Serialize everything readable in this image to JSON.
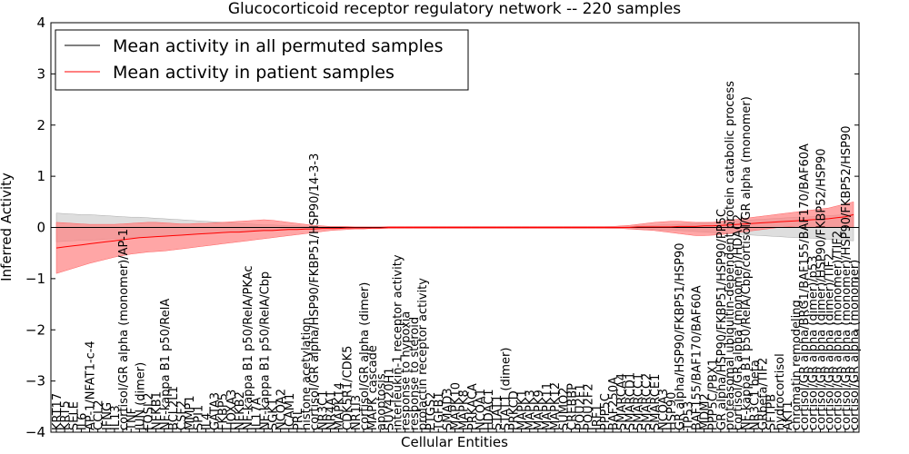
{
  "chart_data": {
    "type": "line",
    "title": "Glucocorticoid receptor regulatory network -- 220 samples",
    "xlabel": "Cellular Entities",
    "ylabel": "Inferred Activity",
    "ylim": [
      -4,
      4
    ],
    "yticks": [
      -4,
      -3,
      -2,
      -1,
      0,
      1,
      2,
      3,
      4
    ],
    "legend_position": "top-left",
    "colors": {
      "permuted": "#000000",
      "patient": "#ff0000",
      "permuted_band": "#c8c8c8",
      "patient_band": "#ff8080"
    },
    "categories": [
      "KRT17",
      "KRT5",
      "SELE",
      "IL6",
      "AP-1/NFAT1-c-4",
      "CCL2",
      "IFNG",
      "IL13",
      "cortisol/GR alpha (monomer)/AP-1",
      "TNF",
      "JUN (dimer)",
      "FOSL2",
      "NFKB1",
      "NF-kappa B1 p50/RelA",
      "BCL2L1",
      "CSF2",
      "MMP1",
      "SPI1",
      "IL4",
      "GATA3",
      "FKBP5",
      "HOXA3",
      "NFKB2",
      "NF-kappa B1 p50/RelA/PKAc",
      "IL17A",
      "NF-kappa B1 p50/RelA/Cbp",
      "SGK1",
      "NCOA2",
      "ICAM1",
      "PRL",
      "histone acetylation",
      "cortisol/GR alpha/HSP90/FKBP51/HSP90/14-3-3",
      "NR3C1",
      "NR4A1",
      "MAPK14",
      "CDK5R1/CDK5",
      "NR1I3",
      "cortisol/GR alpha (dimer)",
      "MAPK cascade",
      "apoptosis",
      "SUV420H1",
      "interleukin-1 receptor activity",
      "response to hypoxia",
      "response to steroid",
      "prolactin receptor activity",
      "PTGS2",
      "TGFB1",
      "SMAD3",
      "MAPK10",
      "MAPK8",
      "PRKACA",
      "NCOA1",
      "HDAC1",
      "STAT1",
      "STAT1 (dimer)",
      "PRKCD",
      "MAPK1",
      "MAPK3",
      "MAPK9",
      "MAPK11",
      "MAPK12",
      "SUMO2",
      "CREBBP",
      "POU2F1",
      "POU2F2",
      "IRF1",
      "PPP5C",
      "BAF250A",
      "SMARCA4",
      "SMARCD1",
      "SMARCC1",
      "SMARCC2",
      "SMARCE1",
      "NCOA3",
      "HSP90",
      "GR alpha/HSP90/FKBP51/HSP90",
      "TP53",
      "BAF155/BAF170/BAF60A",
      "MDM2",
      "PPP5C/PBX1",
      "GR alpha/HSP90/FKBP51/HSP90/PP5C",
      "proteasomal ubiquitin-dependent protein catabolic process",
      "cortisol/GR alpha (monomer)/HDAC2",
      "NF-kappa B1 p50/RelA/Cbp/cortisol/GR alpha (monomer)",
      "NR3C1 beta",
      "GRbeta/TIF2",
      "SFTPB",
      "hydrocortisol",
      "AKT1",
      "chromatin remodeling",
      "cortisol/GR alpha/BRG1/BAF155/BAF170/BAF60A",
      "cortisol/GR alpha (dimer)/p53",
      "cortisol/GR alpha (dimer)/HSP90/FKBP52/HSP90",
      "cortisol/GR alpha (dimer)/TIF2",
      "cortisol/GR alpha (monomer)/TIF2",
      "cortisol/GR alpha (monomer)/HSP90/FKBP52/HSP90",
      "cortisol/GR alpha (monomer)"
    ],
    "series": [
      {
        "name": "Mean activity in all permuted samples",
        "color": "#000000",
        "values": [
          0,
          0,
          0,
          0,
          0,
          0,
          0,
          0,
          0,
          0,
          0,
          0,
          0,
          0,
          0,
          0,
          0,
          0,
          0,
          0,
          0,
          0,
          0,
          0,
          0,
          0,
          0,
          0,
          0,
          0,
          0,
          0,
          0,
          0,
          0,
          0,
          0,
          0,
          0,
          0,
          0,
          0,
          0,
          0,
          0,
          0,
          0,
          0,
          0,
          0,
          0,
          0,
          0,
          0,
          0,
          0,
          0,
          0,
          0,
          0,
          0,
          0,
          0,
          0,
          0,
          0,
          0,
          0,
          0,
          0,
          0,
          0,
          0,
          0,
          0,
          0,
          0,
          0,
          0,
          0,
          0,
          0,
          0,
          0,
          0,
          0,
          0,
          0,
          0,
          0,
          0,
          0,
          0,
          0,
          0,
          0,
          0
        ],
        "lower": [
          -0.28,
          -0.27,
          -0.26,
          -0.25,
          -0.25,
          -0.24,
          -0.23,
          -0.22,
          -0.21,
          -0.2,
          -0.2,
          -0.19,
          -0.18,
          -0.17,
          -0.16,
          -0.15,
          -0.14,
          -0.13,
          -0.12,
          -0.11,
          -0.1,
          -0.09,
          -0.08,
          -0.07,
          -0.06,
          -0.05,
          -0.05,
          -0.04,
          -0.03,
          -0.03,
          -0.02,
          -0.02,
          -0.02,
          -0.01,
          -0.01,
          -0.01,
          -0.01,
          -0.01,
          -0.01,
          -0.01,
          -0.01,
          -0.01,
          -0.01,
          -0.01,
          -0.01,
          -0.01,
          -0.01,
          -0.01,
          -0.01,
          -0.01,
          -0.01,
          -0.01,
          -0.01,
          -0.01,
          -0.01,
          -0.01,
          -0.01,
          -0.01,
          -0.01,
          -0.01,
          -0.01,
          -0.01,
          -0.01,
          -0.01,
          -0.01,
          -0.01,
          -0.01,
          -0.02,
          -0.02,
          -0.02,
          -0.03,
          -0.03,
          -0.04,
          -0.05,
          -0.05,
          -0.06,
          -0.07,
          -0.08,
          -0.09,
          -0.1,
          -0.11,
          -0.12,
          -0.13,
          -0.14,
          -0.15,
          -0.16,
          -0.17,
          -0.18,
          -0.19,
          -0.2,
          -0.2,
          -0.21,
          -0.22,
          -0.23,
          -0.24,
          -0.25,
          -0.26
        ],
        "upper": [
          0.28,
          0.27,
          0.26,
          0.25,
          0.25,
          0.24,
          0.23,
          0.22,
          0.21,
          0.2,
          0.2,
          0.19,
          0.18,
          0.17,
          0.16,
          0.15,
          0.14,
          0.13,
          0.12,
          0.11,
          0.1,
          0.09,
          0.08,
          0.07,
          0.06,
          0.05,
          0.05,
          0.04,
          0.03,
          0.03,
          0.02,
          0.02,
          0.02,
          0.01,
          0.01,
          0.01,
          0.01,
          0.01,
          0.01,
          0.01,
          0.01,
          0.01,
          0.01,
          0.01,
          0.01,
          0.01,
          0.01,
          0.01,
          0.01,
          0.01,
          0.01,
          0.01,
          0.01,
          0.01,
          0.01,
          0.01,
          0.01,
          0.01,
          0.01,
          0.01,
          0.01,
          0.01,
          0.01,
          0.01,
          0.01,
          0.01,
          0.01,
          0.02,
          0.02,
          0.02,
          0.03,
          0.03,
          0.04,
          0.05,
          0.05,
          0.06,
          0.07,
          0.08,
          0.09,
          0.1,
          0.11,
          0.12,
          0.13,
          0.14,
          0.15,
          0.16,
          0.17,
          0.18,
          0.19,
          0.2,
          0.2,
          0.21,
          0.22,
          0.23,
          0.24,
          0.25,
          0.26
        ]
      },
      {
        "name": "Mean activity in patient samples",
        "color": "#ff0000",
        "values": [
          -0.4,
          -0.38,
          -0.36,
          -0.34,
          -0.32,
          -0.3,
          -0.28,
          -0.26,
          -0.24,
          -0.22,
          -0.2,
          -0.19,
          -0.18,
          -0.17,
          -0.16,
          -0.15,
          -0.14,
          -0.13,
          -0.12,
          -0.11,
          -0.1,
          -0.09,
          -0.09,
          -0.08,
          -0.07,
          -0.06,
          -0.06,
          -0.05,
          -0.04,
          -0.04,
          -0.03,
          -0.03,
          -0.02,
          -0.02,
          -0.02,
          -0.01,
          -0.01,
          -0.01,
          -0.01,
          -0.01,
          0,
          0,
          0,
          0,
          0,
          0,
          0,
          0,
          0,
          0,
          0,
          0,
          0,
          0,
          0,
          0,
          0,
          0,
          0,
          0,
          0,
          0,
          0,
          0,
          0,
          0,
          0,
          0,
          0,
          0,
          0.01,
          0.01,
          0.01,
          0.01,
          0.01,
          0.02,
          0.02,
          0.02,
          0.03,
          0.03,
          0.04,
          0.05,
          0.06,
          0.07,
          0.08,
          0.09,
          0.1,
          0.11,
          0.12,
          0.13,
          0.14,
          0.15,
          0.16,
          0.17,
          0.19,
          0.21,
          0.25
        ],
        "lower": [
          -0.9,
          -0.85,
          -0.8,
          -0.75,
          -0.7,
          -0.66,
          -0.62,
          -0.58,
          -0.55,
          -0.52,
          -0.5,
          -0.48,
          -0.47,
          -0.46,
          -0.44,
          -0.42,
          -0.4,
          -0.38,
          -0.36,
          -0.34,
          -0.32,
          -0.3,
          -0.28,
          -0.26,
          -0.24,
          -0.22,
          -0.2,
          -0.18,
          -0.16,
          -0.14,
          -0.12,
          -0.1,
          -0.08,
          -0.06,
          -0.05,
          -0.04,
          -0.03,
          -0.03,
          -0.02,
          -0.02,
          -0.02,
          -0.02,
          -0.02,
          -0.02,
          -0.02,
          -0.02,
          -0.02,
          -0.02,
          -0.02,
          -0.02,
          -0.02,
          -0.02,
          -0.02,
          -0.02,
          -0.02,
          -0.02,
          -0.02,
          -0.02,
          -0.02,
          -0.02,
          -0.02,
          -0.02,
          -0.02,
          -0.02,
          -0.02,
          -0.02,
          -0.02,
          -0.02,
          -0.02,
          -0.03,
          -0.04,
          -0.05,
          -0.06,
          -0.08,
          -0.1,
          -0.12,
          -0.14,
          -0.16,
          -0.16,
          -0.15,
          -0.14,
          -0.12,
          -0.1,
          -0.08,
          -0.06,
          -0.04,
          -0.02,
          0,
          0.01,
          0.02,
          0.02,
          0.02,
          0.02,
          0.02,
          0.02,
          0.02,
          0.0
        ],
        "upper": [
          0.1,
          0.09,
          0.08,
          0.07,
          0.06,
          0.06,
          0.06,
          0.06,
          0.07,
          0.08,
          0.09,
          0.1,
          0.1,
          0.09,
          0.08,
          0.07,
          0.07,
          0.08,
          0.08,
          0.09,
          0.1,
          0.11,
          0.12,
          0.13,
          0.14,
          0.15,
          0.14,
          0.12,
          0.1,
          0.08,
          0.06,
          0.04,
          0.03,
          0.02,
          0.02,
          0.02,
          0.01,
          0.01,
          0.01,
          0.01,
          0.02,
          0.02,
          0.02,
          0.02,
          0.02,
          0.02,
          0.02,
          0.02,
          0.02,
          0.02,
          0.02,
          0.02,
          0.02,
          0.02,
          0.02,
          0.02,
          0.02,
          0.02,
          0.02,
          0.02,
          0.02,
          0.02,
          0.02,
          0.02,
          0.02,
          0.02,
          0.02,
          0.02,
          0.03,
          0.04,
          0.06,
          0.08,
          0.1,
          0.11,
          0.12,
          0.12,
          0.11,
          0.1,
          0.1,
          0.1,
          0.12,
          0.14,
          0.16,
          0.18,
          0.2,
          0.22,
          0.24,
          0.26,
          0.28,
          0.3,
          0.32,
          0.34,
          0.36,
          0.38,
          0.42,
          0.46,
          0.5
        ]
      }
    ]
  }
}
